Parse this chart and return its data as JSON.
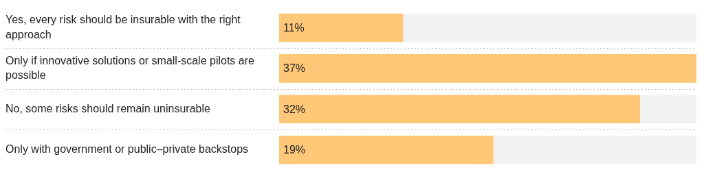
{
  "chart_data": {
    "type": "bar",
    "orientation": "horizontal",
    "categories": [
      "Yes, every risk should be insurable with the right approach",
      "Only if innovative solutions or small-scale pilots are possible",
      "No, some risks should remain uninsurable",
      "Only with government or public–private backstops"
    ],
    "values": [
      11,
      37,
      32,
      19
    ],
    "color": "#fec878",
    "value_labels": [
      "11%",
      "37%",
      "32%",
      "19%"
    ],
    "grid": false,
    "legend": false
  }
}
